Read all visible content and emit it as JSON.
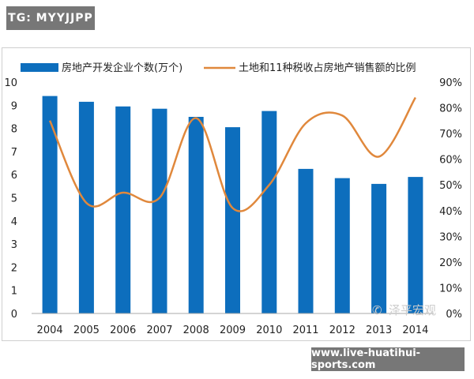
{
  "top_tag": "TG: MYYJJPP",
  "bottom_tag": "www.live-huatihui-sports.com",
  "watermark": "泽平宏观",
  "colors": {
    "bar": "#0d6ebd",
    "line": "#e0883c",
    "axis": "#a9a9a9",
    "tag_bg": "#777777"
  },
  "chart_data": {
    "type": "bar",
    "title": "",
    "categories": [
      "2004",
      "2005",
      "2006",
      "2007",
      "2008",
      "2009",
      "2010",
      "2011",
      "2012",
      "2013",
      "2014"
    ],
    "series": [
      {
        "name": "房地产开发企业个数(万个)",
        "type": "bar",
        "axis": "left",
        "values": [
          9.4,
          9.15,
          8.95,
          8.85,
          8.5,
          8.05,
          8.75,
          6.25,
          5.85,
          5.6,
          5.9
        ]
      },
      {
        "name": "土地和11种税收占房地产销售额的比例",
        "type": "line",
        "axis": "right",
        "values": [
          75,
          43,
          47,
          45,
          76,
          41,
          50,
          74,
          77,
          61,
          84
        ]
      }
    ],
    "y_left": {
      "min": 0,
      "max": 10,
      "step": 1,
      "tick_labels": [
        "0",
        "1",
        "2",
        "3",
        "4",
        "5",
        "6",
        "7",
        "8",
        "9",
        "10"
      ]
    },
    "y_right": {
      "min": 0,
      "max": 90,
      "step": 10,
      "tick_labels": [
        "0%",
        "10%",
        "20%",
        "30%",
        "40%",
        "50%",
        "60%",
        "70%",
        "80%",
        "90%"
      ]
    },
    "legend_position": "top",
    "grid": false
  }
}
